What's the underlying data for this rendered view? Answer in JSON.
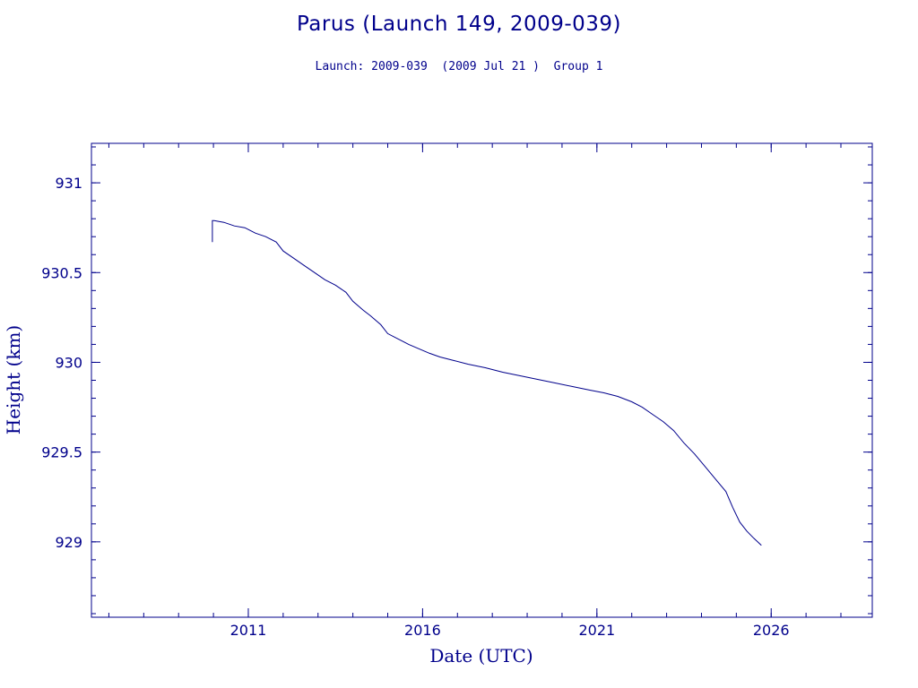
{
  "chart_data": {
    "type": "line",
    "title": "Parus (Launch 149, 2009-039)",
    "subtitle": "Launch: 2009-039  (2009 Jul 21 )  Group 1",
    "xlabel": "Date (UTC)",
    "ylabel": "Height (km)",
    "xlim": [
      2006.5,
      2028.9
    ],
    "ylim": [
      928.58,
      931.22
    ],
    "x_ticks": [
      2011,
      2016,
      2021,
      2026
    ],
    "x_tick_labels": [
      "2011",
      "2016",
      "2021",
      "2026"
    ],
    "y_ticks": [
      929,
      929.5,
      930,
      930.5,
      931
    ],
    "y_tick_labels": [
      "929",
      "929.5",
      "930",
      "930.5",
      "931"
    ],
    "grid": false,
    "colors": {
      "line": "#00008b",
      "axes": "#00008b",
      "background": "#ffffff"
    },
    "series": [
      {
        "x": [
          2009.97,
          2009.97,
          2010.02,
          2010.3,
          2010.6,
          2010.9,
          2011.2,
          2011.5,
          2011.8,
          2012.0,
          2012.3,
          2012.6,
          2012.9,
          2013.2,
          2013.5,
          2013.8,
          2014.0,
          2014.3,
          2014.5,
          2014.8,
          2015.0,
          2015.3,
          2015.6,
          2015.9,
          2016.2,
          2016.5,
          2016.9,
          2017.3,
          2017.8,
          2018.3,
          2018.8,
          2019.3,
          2019.8,
          2020.3,
          2020.8,
          2021.2,
          2021.6,
          2022.0,
          2022.3,
          2022.6,
          2022.9,
          2023.2,
          2023.5,
          2023.8,
          2024.1,
          2024.4,
          2024.7,
          2024.9,
          2025.1,
          2025.3,
          2025.5,
          2025.72
        ],
        "y": [
          930.67,
          930.79,
          930.79,
          930.78,
          930.76,
          930.75,
          930.72,
          930.7,
          930.67,
          930.62,
          930.58,
          930.54,
          930.5,
          930.46,
          930.43,
          930.39,
          930.34,
          930.29,
          930.26,
          930.21,
          930.16,
          930.13,
          930.1,
          930.075,
          930.05,
          930.03,
          930.01,
          929.99,
          929.97,
          929.945,
          929.925,
          929.905,
          929.885,
          929.865,
          929.845,
          929.83,
          929.81,
          929.78,
          929.75,
          929.71,
          929.67,
          929.62,
          929.55,
          929.49,
          929.42,
          929.35,
          929.28,
          929.19,
          929.11,
          929.06,
          929.02,
          928.98
        ]
      }
    ]
  }
}
